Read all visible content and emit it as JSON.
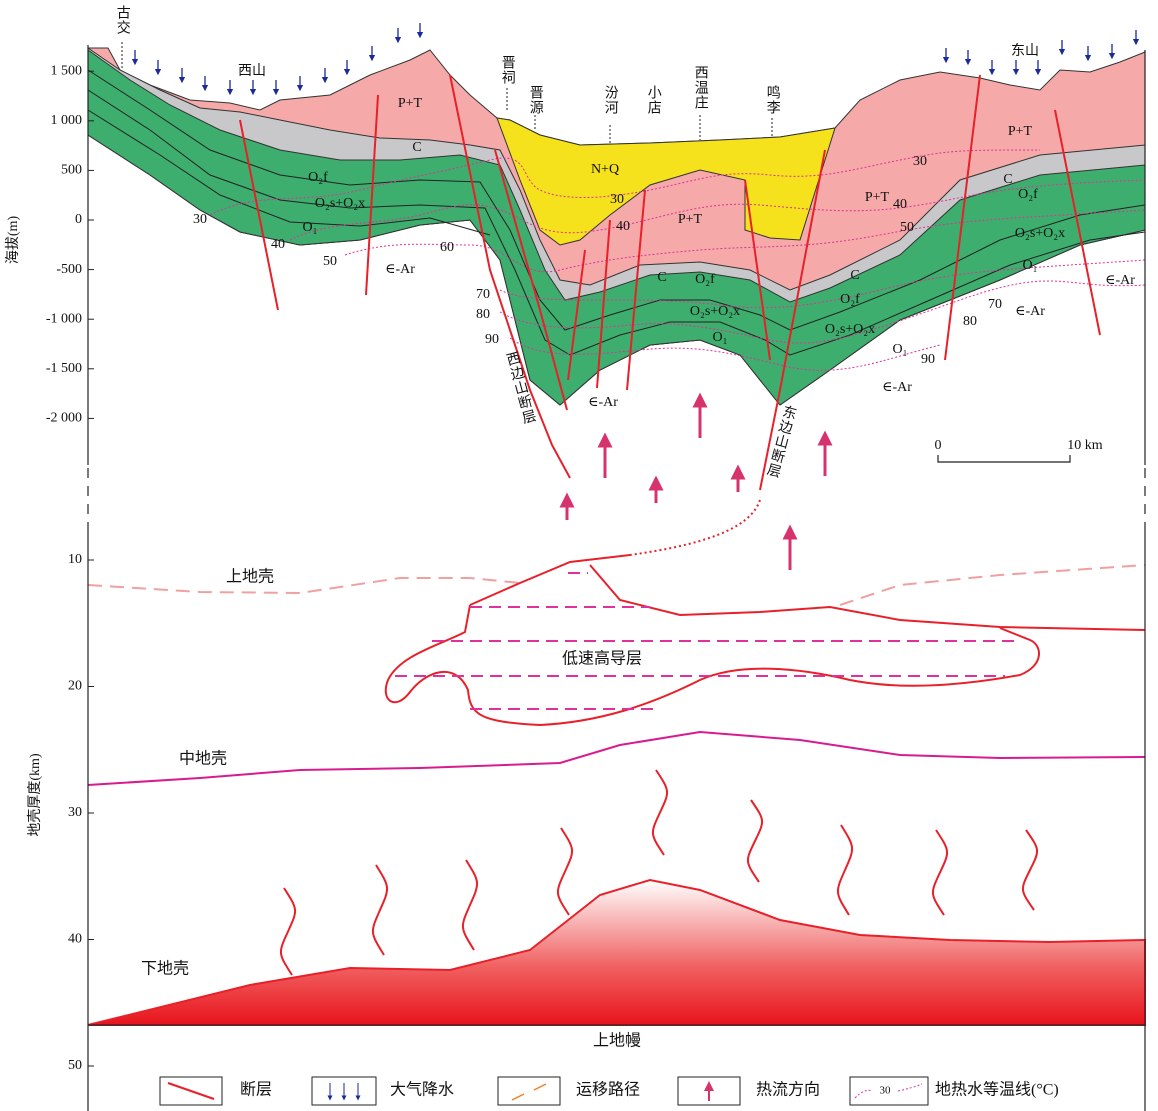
{
  "upper_axis": {
    "title": "海拔(m)",
    "ticks": [
      {
        "value": 1500,
        "label": "1 500"
      },
      {
        "value": 1000,
        "label": "1 000"
      },
      {
        "value": 500,
        "label": "500"
      },
      {
        "value": 0,
        "label": "0"
      },
      {
        "value": -500,
        "label": "-500"
      },
      {
        "value": -1000,
        "label": "-1 000"
      },
      {
        "value": -1500,
        "label": "-1 500"
      },
      {
        "value": -2000,
        "label": "-2 000"
      }
    ]
  },
  "lower_axis": {
    "title": "地壳厚度(km)",
    "ticks": [
      10,
      20,
      30,
      40,
      50
    ]
  },
  "places": [
    "古交",
    "西山",
    "晋祠",
    "晋源",
    "汾河",
    "小店",
    "西温庄",
    "鸣李",
    "东山"
  ],
  "formations": [
    "P+T",
    "C",
    "O₂f",
    "O₂s+O₂x",
    "O₁",
    "∈-Ar",
    "N+Q",
    "P+T",
    "C",
    "O₂f",
    "O₂s+O₂x",
    "O₁",
    "∈-Ar",
    "P+T",
    "P+T",
    "C",
    "O₂f",
    "O₂s+O₂x",
    "O₁",
    "C",
    "O₂f",
    "O₂s+O₂x",
    "O₁",
    "∈-Ar",
    "∈-Ar",
    "∈-Ar"
  ],
  "isotherms": [
    30,
    40,
    50,
    60,
    70,
    80,
    90,
    30,
    40,
    30,
    40,
    50,
    70,
    80,
    90
  ],
  "faults": [
    "西边山断层",
    "东边山断层"
  ],
  "scale": {
    "start": "0",
    "end": "10 km"
  },
  "crust": [
    "上地壳",
    "低速高导层",
    "中地壳",
    "下地壳",
    "上地幔"
  ],
  "legend": {
    "items": [
      "断层",
      "大气降水",
      "运移路径",
      "热流方向",
      "地热水等温线(°C)"
    ],
    "isotherm_sample": 30
  }
}
